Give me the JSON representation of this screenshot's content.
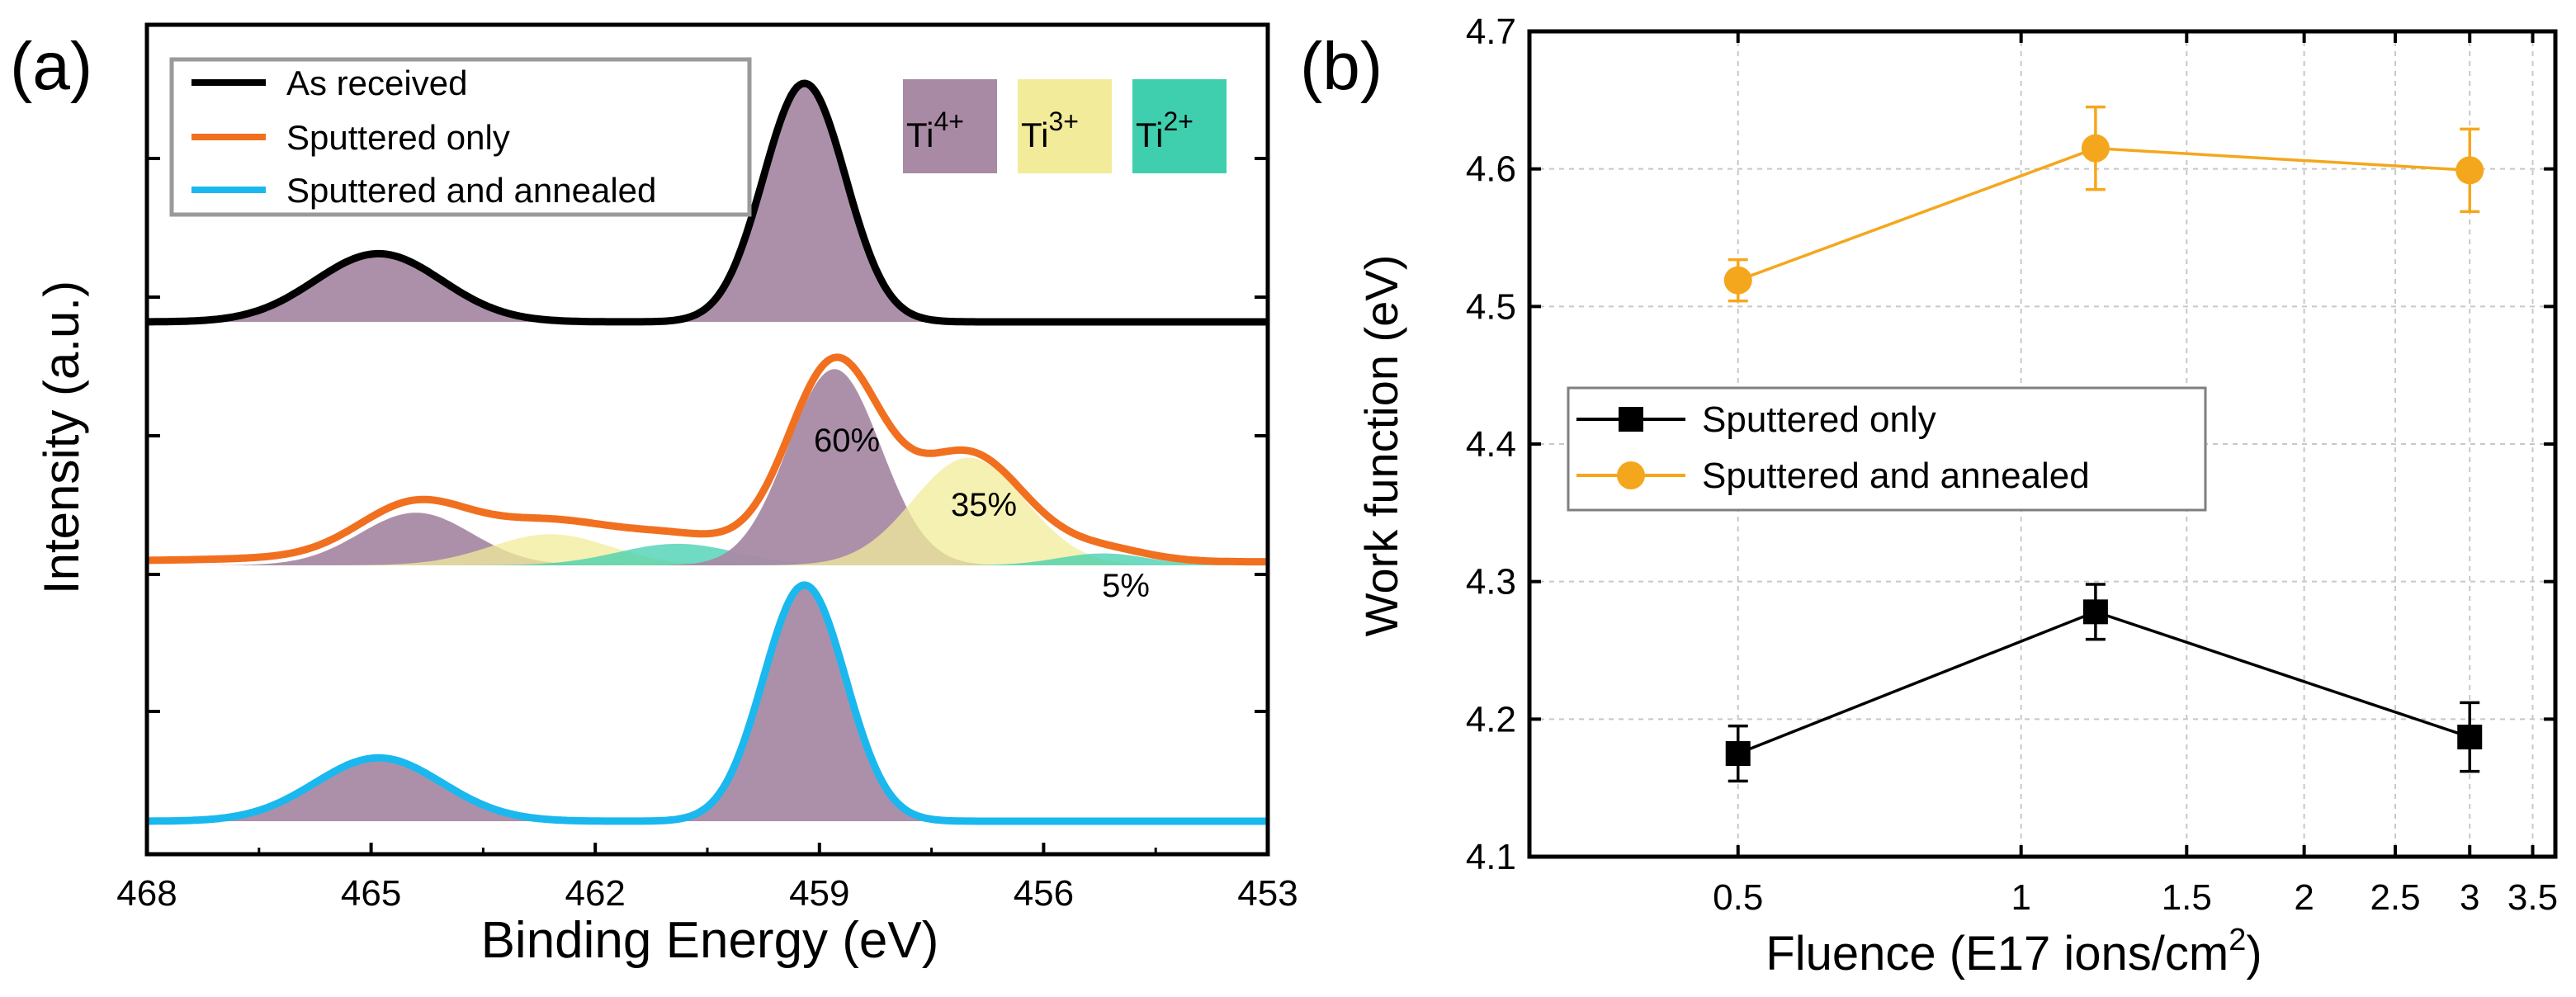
{
  "chart_data": [
    {
      "panel_label": "(a)",
      "type": "line",
      "xlabel": "Binding Energy (eV)",
      "ylabel": "Intensity (a.u.)",
      "xlim": [
        468,
        453
      ],
      "xticks": [
        "468",
        "465",
        "462",
        "459",
        "456",
        "453"
      ],
      "legend": {
        "placement": "top-left",
        "entries": [
          {
            "name": "As received",
            "color": "#000000"
          },
          {
            "name": "Sputtered only",
            "color": "#f07020"
          },
          {
            "name": "Sputtered and annealed",
            "color": "#1ab8ee"
          }
        ]
      },
      "states": [
        {
          "label": "Ti",
          "sup": "4+",
          "color": "#a88aa5"
        },
        {
          "label": "Ti",
          "sup": "3+",
          "color": "#f2ec9a"
        },
        {
          "label": "Ti",
          "sup": "2+",
          "color": "#3fcfae"
        }
      ],
      "annotations": [
        {
          "text": "60%",
          "x": 458.9,
          "offset": 0.62,
          "series": "Sputtered only"
        },
        {
          "text": "35%",
          "x": 456.9,
          "offset": 0.3,
          "series": "Sputtered only"
        },
        {
          "text": "5%",
          "x": 455.0,
          "offset": -0.1,
          "series": "Sputtered only"
        }
      ],
      "series": [
        {
          "name": "As received",
          "color": "#000000",
          "baseline": 0.0,
          "offset": 0,
          "fill_components": [
            "Ti4+ 464.9",
            "Ti4+ 459.2"
          ],
          "components": [
            {
              "state": "4+",
              "center": 464.9,
              "height": 0.28,
              "sigma": 0.85
            },
            {
              "state": "4+",
              "center": 459.2,
              "height": 0.98,
              "sigma": 0.55
            }
          ]
        },
        {
          "name": "Sputtered only",
          "color": "#f07020",
          "offset": 0,
          "components": [
            {
              "state": "4+",
              "center": 464.4,
              "height": 0.22,
              "sigma": 0.75
            },
            {
              "state": "3+",
              "center": 462.6,
              "height": 0.13,
              "sigma": 0.8
            },
            {
              "state": "2+",
              "center": 460.9,
              "height": 0.09,
              "sigma": 0.8
            },
            {
              "state": "4+",
              "center": 458.8,
              "height": 0.82,
              "sigma": 0.62
            },
            {
              "state": "3+",
              "center": 457.0,
              "height": 0.45,
              "sigma": 0.75
            },
            {
              "state": "2+",
              "center": 455.2,
              "height": 0.05,
              "sigma": 0.6
            }
          ]
        },
        {
          "name": "Sputtered and annealed",
          "color": "#1ab8ee",
          "offset": 0,
          "components": [
            {
              "state": "4+",
              "center": 464.9,
              "height": 0.26,
              "sigma": 0.85
            },
            {
              "state": "4+",
              "center": 459.2,
              "height": 0.97,
              "sigma": 0.55
            }
          ]
        }
      ]
    },
    {
      "panel_label": "(b)",
      "type": "scatter",
      "xlabel": "Fluence (E17 ions/cm",
      "xlabel_sup": "2",
      "xlabel_close": ")",
      "ylabel": "Work function (eV)",
      "x_scale": "log",
      "xlim": [
        0.3,
        3.7
      ],
      "ylim": [
        4.1,
        4.7
      ],
      "xticks": [
        {
          "v": 0.5,
          "label": "0.5"
        },
        {
          "v": 1,
          "label": "1"
        },
        {
          "v": 1.5,
          "label": "1.5"
        },
        {
          "v": 2,
          "label": "2"
        },
        {
          "v": 2.5,
          "label": "2.5"
        },
        {
          "v": 3,
          "label": "3"
        },
        {
          "v": 3.5,
          "label": "3.5"
        }
      ],
      "yticks": [
        "4.1",
        "4.2",
        "4.3",
        "4.4",
        "4.5",
        "4.6",
        "4.7"
      ],
      "grid": true,
      "legend": {
        "placement": "center-left"
      },
      "series": [
        {
          "name": "Sputtered only",
          "color": "#000000",
          "marker": "square",
          "x": [
            0.5,
            1.2,
            3.0
          ],
          "y": [
            4.175,
            4.278,
            4.187
          ],
          "err": [
            0.02,
            0.02,
            0.025
          ]
        },
        {
          "name": "Sputtered and annealed",
          "color": "#f4a71d",
          "marker": "circle",
          "x": [
            0.5,
            1.2,
            3.0
          ],
          "y": [
            4.519,
            4.615,
            4.599
          ],
          "err": [
            0.015,
            0.03,
            0.03
          ]
        }
      ]
    }
  ]
}
